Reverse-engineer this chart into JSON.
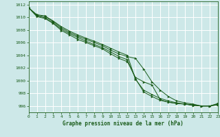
{
  "xlabel": "Graphe pression niveau de la mer (hPa)",
  "bg_color": "#cde8e8",
  "grid_color": "#ffffff",
  "line_color": "#1a5c1a",
  "xlim": [
    0,
    23
  ],
  "ylim": [
    995.0,
    1012.5
  ],
  "xticks": [
    0,
    1,
    2,
    3,
    4,
    5,
    6,
    7,
    8,
    9,
    10,
    11,
    12,
    13,
    14,
    15,
    16,
    17,
    18,
    19,
    20,
    21,
    22,
    23
  ],
  "yticks": [
    996,
    998,
    1000,
    1002,
    1004,
    1006,
    1008,
    1010,
    1012
  ],
  "series": [
    [
      1011.5,
      1010.4,
      1010.2,
      1009.4,
      1008.5,
      1007.8,
      1007.2,
      1006.7,
      1006.2,
      1005.7,
      1005.1,
      1004.5,
      1004.0,
      1000.2,
      998.5,
      997.8,
      997.2,
      996.8,
      996.5,
      996.3,
      996.1,
      996.0,
      996.0,
      996.2
    ],
    [
      1011.5,
      1010.3,
      1010.1,
      1009.3,
      1008.3,
      1007.6,
      1007.0,
      1006.5,
      1006.0,
      1005.5,
      1004.8,
      1004.2,
      1003.8,
      1003.5,
      1001.8,
      999.8,
      998.5,
      997.5,
      996.8,
      996.5,
      996.3,
      996.0,
      996.0,
      996.2
    ],
    [
      1011.5,
      1010.2,
      1009.9,
      1009.1,
      1008.1,
      1007.4,
      1006.8,
      1006.2,
      1005.7,
      1005.2,
      1004.5,
      1003.8,
      1003.3,
      1000.3,
      998.2,
      997.5,
      996.9,
      996.6,
      996.4,
      996.3,
      996.2,
      996.0,
      996.0,
      996.3
    ],
    [
      1011.5,
      1010.1,
      1009.8,
      1009.0,
      1007.9,
      1007.2,
      1006.5,
      1006.0,
      1005.5,
      1005.0,
      1004.2,
      1003.5,
      1003.0,
      1000.5,
      999.8,
      999.3,
      997.0,
      996.6,
      996.4,
      996.3,
      996.1,
      996.0,
      996.0,
      996.4
    ]
  ]
}
